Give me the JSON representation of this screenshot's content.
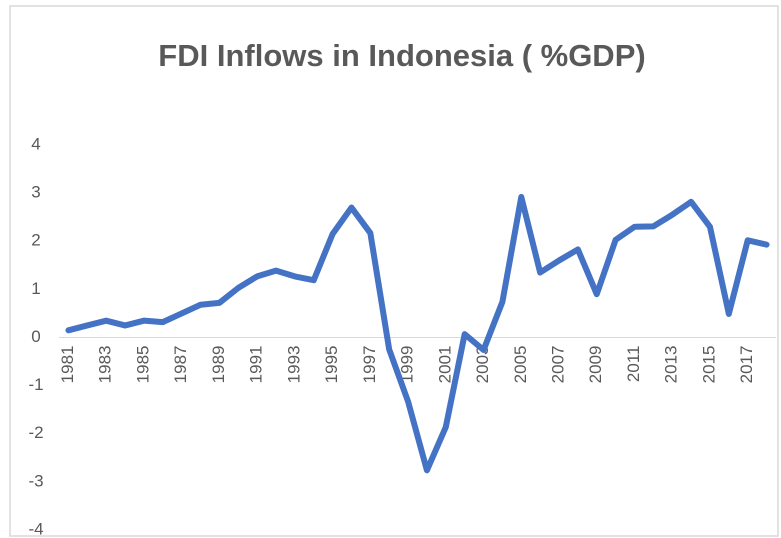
{
  "chart_data": {
    "type": "line",
    "title": "FDI Inflows in Indonesia ( %GDP)",
    "categories": [
      "1981",
      null,
      "1983",
      null,
      "1985",
      null,
      "1987",
      null,
      "1989",
      null,
      "1991",
      null,
      "1993",
      null,
      "1995",
      null,
      "1997",
      null,
      "1999",
      null,
      "2001",
      null,
      "2003",
      null,
      "2005",
      null,
      "2007",
      null,
      "2009",
      null,
      "2011",
      null,
      "2013",
      null,
      "2015",
      null,
      "2017",
      null
    ],
    "series": [
      {
        "name": "FDI Inflows",
        "color": "#4472c4",
        "values": [
          0.15,
          0.25,
          0.35,
          0.25,
          0.35,
          0.32,
          0.5,
          0.68,
          0.72,
          1.03,
          1.27,
          1.39,
          1.27,
          1.19,
          2.15,
          2.7,
          2.17,
          -0.25,
          -1.33,
          -2.76,
          -1.86,
          0.07,
          -0.26,
          0.74,
          2.92,
          1.35,
          1.6,
          1.83,
          0.9,
          2.03,
          2.3,
          2.31,
          2.55,
          2.82,
          2.3,
          0.49,
          2.02,
          1.93
        ]
      }
    ],
    "ylim": [
      -4,
      4
    ],
    "yticks": [
      -4,
      -3,
      -2,
      -1,
      0,
      1,
      2,
      3,
      4
    ],
    "grid": false
  }
}
